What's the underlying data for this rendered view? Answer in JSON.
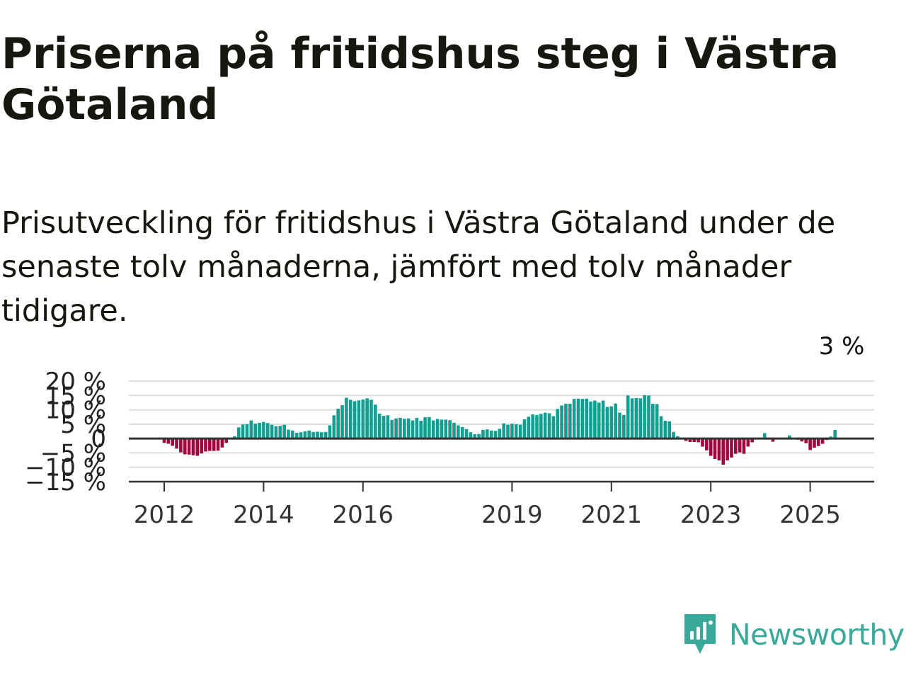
{
  "header": {
    "title": "Priserna på fritidshus steg i Västra Götaland",
    "subtitle": "Prisutveckling för fritidshus i Västra Götaland under de senaste tolv månaderna, jämfört med tolv månader tidigare."
  },
  "brand": {
    "name": "Newsworthy",
    "color": "#3aa99a",
    "icon": "newsworthy-logo-icon"
  },
  "colors": {
    "positive": "#139e91",
    "negative": "#a0073e",
    "grid": "#dddddd",
    "axis": "#333333"
  },
  "chart_data": {
    "type": "bar",
    "unit": "%",
    "ylim": [
      -15,
      20
    ],
    "y_ticks": [
      {
        "value": 20,
        "label": "20 %"
      },
      {
        "value": 15,
        "label": "15 %"
      },
      {
        "value": 10,
        "label": "10 %"
      },
      {
        "value": 5,
        "label": "5 %"
      },
      {
        "value": 0,
        "label": "0"
      },
      {
        "value": -5,
        "label": "−5 %"
      },
      {
        "value": -10,
        "label": "−10 %"
      },
      {
        "value": -15,
        "label": "−15 %"
      }
    ],
    "x_ticks": [
      {
        "date": "2012-01",
        "label": "2012"
      },
      {
        "date": "2014-01",
        "label": "2014"
      },
      {
        "date": "2016-01",
        "label": "2016"
      },
      {
        "date": "2019-01",
        "label": "2019"
      },
      {
        "date": "2021-01",
        "label": "2021"
      },
      {
        "date": "2023-01",
        "label": "2023"
      },
      {
        "date": "2025-01",
        "label": "2025"
      }
    ],
    "start": "2012-01",
    "values": [
      -1.5,
      -1.8,
      -2.5,
      -3.5,
      -4.8,
      -5.5,
      -5.6,
      -5.8,
      -6.0,
      -5.2,
      -4.5,
      -4.3,
      -4.3,
      -4.2,
      -3.1,
      -1.5,
      0.3,
      0.8,
      3.9,
      4.9,
      5.0,
      6.3,
      5.2,
      5.5,
      5.8,
      5.4,
      4.8,
      4.3,
      4.4,
      4.8,
      3.1,
      2.8,
      2.0,
      2.2,
      2.5,
      2.8,
      2.3,
      2.4,
      2.2,
      2.3,
      4.6,
      8.1,
      10.4,
      11.6,
      14.2,
      13.5,
      13.0,
      13.3,
      13.6,
      14.0,
      13.5,
      11.8,
      8.7,
      7.9,
      8.1,
      6.5,
      7.0,
      7.2,
      6.9,
      7.0,
      6.3,
      7.2,
      6.2,
      7.4,
      7.5,
      6.3,
      6.8,
      6.6,
      6.6,
      6.4,
      5.5,
      4.6,
      4.0,
      3.3,
      2.2,
      1.5,
      1.6,
      3.0,
      3.2,
      2.8,
      2.7,
      3.4,
      5.3,
      4.8,
      5.2,
      5.0,
      4.8,
      6.7,
      7.6,
      8.4,
      8.2,
      8.6,
      9.0,
      8.8,
      7.8,
      10.3,
      11.5,
      12.1,
      12.1,
      13.8,
      13.9,
      13.8,
      13.9,
      12.9,
      13.2,
      12.5,
      13.2,
      11.0,
      11.2,
      12.2,
      9.0,
      8.2,
      15.0,
      14.0,
      14.1,
      14.0,
      15.1,
      15.0,
      12.1,
      12.0,
      7.8,
      6.2,
      6.0,
      2.3,
      0.8,
      0.3,
      -0.8,
      -1.2,
      -1.2,
      -1.3,
      -2.8,
      -4.1,
      -6.0,
      -7.1,
      -7.6,
      -9.1,
      -7.6,
      -6.6,
      -5.3,
      -4.8,
      -5.3,
      -2.8,
      -1.3,
      -0.3,
      0.3,
      1.9,
      0.3,
      -1.1,
      0.0,
      0.3,
      0.3,
      1.1,
      0.2,
      -0.4,
      -1.0,
      -1.6,
      -4.0,
      -3.2,
      -2.6,
      -1.8,
      -0.5,
      0.7,
      3.0
    ],
    "annotations": [
      {
        "date": "2025-09",
        "label": "3 %"
      }
    ]
  }
}
